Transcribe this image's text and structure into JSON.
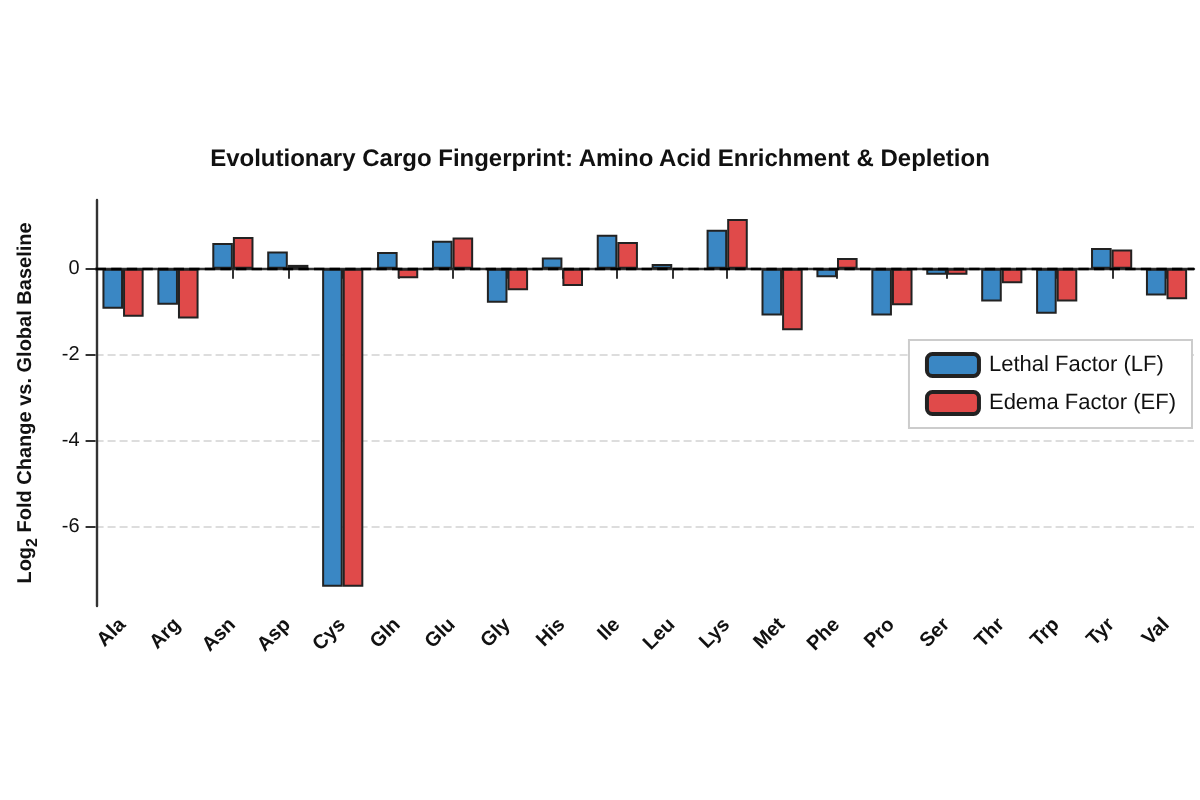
{
  "chart_data": {
    "type": "bar",
    "title": "Evolutionary Cargo Fingerprint: Amino Acid Enrichment & Depletion",
    "ylabel": "Log$_{2}$ Fold Change vs. Global Baseline",
    "categories": [
      "Ala",
      "Arg",
      "Asn",
      "Asp",
      "Cys",
      "Gln",
      "Glu",
      "Gly",
      "His",
      "Ile",
      "Leu",
      "Lys",
      "Met",
      "Phe",
      "Pro",
      "Ser",
      "Thr",
      "Trp",
      "Tyr",
      "Val"
    ],
    "series": [
      {
        "name": "Lethal Factor (LF)",
        "color": "#3a87c4",
        "values": [
          -0.93,
          -0.84,
          0.6,
          0.4,
          -7.4,
          0.39,
          0.65,
          -0.79,
          0.26,
          0.79,
          0.11,
          0.91,
          -1.09,
          -0.2,
          -1.09,
          -0.14,
          -0.76,
          -1.05,
          0.48,
          -0.62
        ]
      },
      {
        "name": "Edema Factor (EF)",
        "color": "#e04a4a",
        "values": [
          -1.12,
          -1.16,
          0.74,
          0.09,
          -7.4,
          -0.22,
          0.73,
          -0.5,
          -0.4,
          0.62,
          null,
          1.16,
          -1.43,
          0.25,
          -0.85,
          -0.14,
          -0.34,
          -0.76,
          0.45,
          -0.71
        ]
      }
    ],
    "ylim": [
      -7.85,
      1.6
    ],
    "yticks": [
      -6,
      -4,
      -2,
      0
    ],
    "grid": "y",
    "legend": "right",
    "ref_lines": [
      {
        "axis": "y",
        "value": 0,
        "color": "#000000",
        "line_style": "dashed"
      }
    ]
  }
}
